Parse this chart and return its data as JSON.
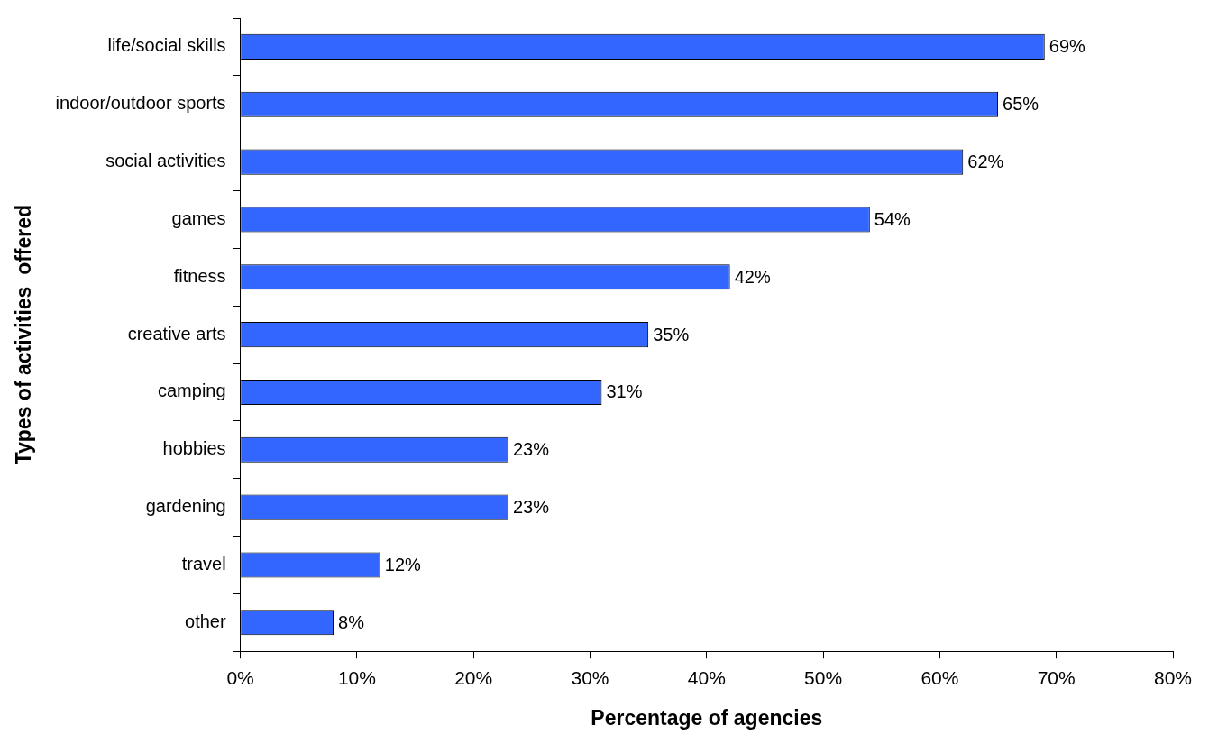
{
  "chart_data": {
    "type": "bar",
    "orientation": "horizontal",
    "xlabel": "Percentage of agencies",
    "ylabel": "Types of activities  offered",
    "categories": [
      "life/social skills",
      "indoor/outdoor sports",
      "social activities",
      "games",
      "fitness",
      "creative arts",
      "camping",
      "hobbies",
      "gardening",
      "travel",
      "other"
    ],
    "values": [
      69,
      65,
      62,
      54,
      42,
      35,
      31,
      23,
      23,
      12,
      8
    ],
    "value_labels": [
      "69%",
      "65%",
      "62%",
      "54%",
      "42%",
      "35%",
      "31%",
      "23%",
      "23%",
      "12%",
      "8%"
    ],
    "color": "#3366ff",
    "xlim": [
      0,
      80
    ],
    "xticks": [
      {
        "value": 0,
        "label": "0%"
      },
      {
        "value": 10,
        "label": "10%"
      },
      {
        "value": 20,
        "label": "20%"
      },
      {
        "value": 30,
        "label": "30%"
      },
      {
        "value": 40,
        "label": "40%"
      },
      {
        "value": 50,
        "label": "50%"
      },
      {
        "value": 60,
        "label": "60%"
      },
      {
        "value": 70,
        "label": "70%"
      },
      {
        "value": 80,
        "label": "80%"
      }
    ],
    "grid": false,
    "legend": false
  }
}
